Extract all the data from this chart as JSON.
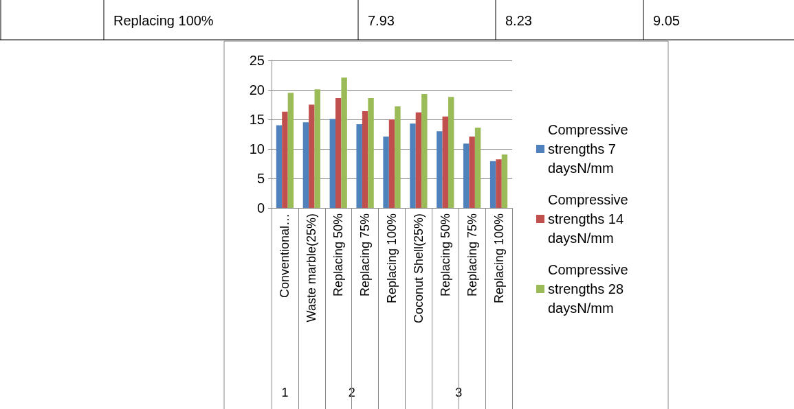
{
  "chart_data": {
    "type": "bar",
    "categories": [
      "Conventional…",
      "Waste marble(25%)",
      "Replacing 50%",
      "Replacing 75%",
      "Replacing 100%",
      "Coconut Shell(25%)",
      "Replacing 50%",
      "Replacing 75%",
      "Replacing 100%"
    ],
    "series": [
      {
        "name": "Compressive strengths 7 daysN/mm",
        "color": "#4f81bd",
        "values": [
          14.0,
          14.5,
          15.1,
          14.2,
          12.1,
          14.3,
          13.0,
          10.9,
          7.93
        ]
      },
      {
        "name": "Compressive strengths 14 daysN/mm",
        "color": "#c0504d",
        "values": [
          16.3,
          17.5,
          18.6,
          16.4,
          15.0,
          16.2,
          15.5,
          12.1,
          8.23
        ]
      },
      {
        "name": "Compressive strengths 28 daysN/mm",
        "color": "#9bbb59",
        "values": [
          19.5,
          20.1,
          22.1,
          18.6,
          17.2,
          19.3,
          18.8,
          13.6,
          9.05
        ]
      }
    ],
    "ylim": [
      0,
      25
    ],
    "yticks": [
      0,
      5,
      10,
      15,
      20,
      25
    ],
    "grid": "y",
    "legend": "right",
    "annotations": [
      "Replacing 100%",
      "7.93",
      "8.23",
      "9.05",
      "1",
      "2",
      "3"
    ]
  }
}
